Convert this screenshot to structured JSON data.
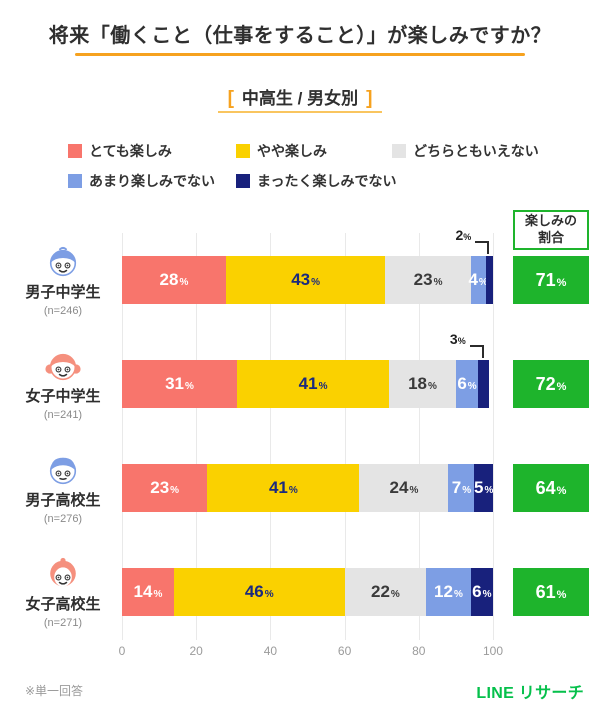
{
  "title": "将来「働くこと（仕事をすること）」が楽しみですか？",
  "subtitle": "中高生 / 男女別",
  "subtitle_bracket_left": "[",
  "subtitle_bracket_right": "]",
  "summary_header": "楽しみの\n割合",
  "footnote": "※単一回答",
  "logo": "LINE リサーチ",
  "colors": {
    "accent_orange": "#F6A21F",
    "accent_orange_light": "#F9C55F",
    "summary_green": "#1EB42C",
    "logo_green": "#05C04B",
    "grid_gray": "#E9E9E9"
  },
  "legend": [
    {
      "label": "とても楽しみ",
      "color": "#F8756C",
      "label_color": "#ffffff"
    },
    {
      "label": "やや楽しみ",
      "color": "#FAD100",
      "label_color": "#1A2A7E"
    },
    {
      "label": "どちらともいえない",
      "color": "#E4E4E4",
      "label_color": "#3a3a3a"
    },
    {
      "label": "あまり楽しみでない",
      "color": "#7D9EE4",
      "label_color": "#ffffff"
    },
    {
      "label": "まったく楽しみでない",
      "color": "#18217C",
      "label_color": "#ffffff"
    }
  ],
  "rows": [
    {
      "name": "男子中学生",
      "n": "(n=246)",
      "avatar": "boy-junior-high",
      "callout_last": true
    },
    {
      "name": "女子中学生",
      "n": "(n=241)",
      "avatar": "girl-junior-high",
      "callout_last": true
    },
    {
      "name": "男子高校生",
      "n": "(n=276)",
      "avatar": "boy-high",
      "callout_last": false
    },
    {
      "name": "女子高校生",
      "n": "(n=271)",
      "avatar": "girl-high",
      "callout_last": false
    }
  ],
  "chart_data": {
    "type": "bar",
    "orientation": "horizontal",
    "stacked": true,
    "title": "将来「働くこと（仕事をすること）」が楽しみですか？",
    "subtitle": "中高生 / 男女別",
    "categories": [
      "男子中学生 (n=246)",
      "女子中学生 (n=241)",
      "男子高校生 (n=276)",
      "女子高校生 (n=271)"
    ],
    "series": [
      {
        "name": "とても楽しみ",
        "values": [
          28,
          31,
          23,
          14
        ]
      },
      {
        "name": "やや楽しみ",
        "values": [
          43,
          41,
          41,
          46
        ]
      },
      {
        "name": "どちらともいえない",
        "values": [
          23,
          18,
          24,
          22
        ]
      },
      {
        "name": "あまり楽しみでない",
        "values": [
          4,
          6,
          7,
          12
        ]
      },
      {
        "name": "まったく楽しみでない",
        "values": [
          2,
          3,
          5,
          6
        ]
      }
    ],
    "summary": {
      "label": "楽しみの割合",
      "values": [
        71,
        72,
        64,
        61
      ]
    },
    "value_suffix": "%",
    "xlim": [
      0,
      100
    ],
    "x_ticks": [
      0,
      20,
      40,
      60,
      80,
      100
    ],
    "grid": true,
    "legend_position": "top",
    "footnote": "※単一回答"
  }
}
